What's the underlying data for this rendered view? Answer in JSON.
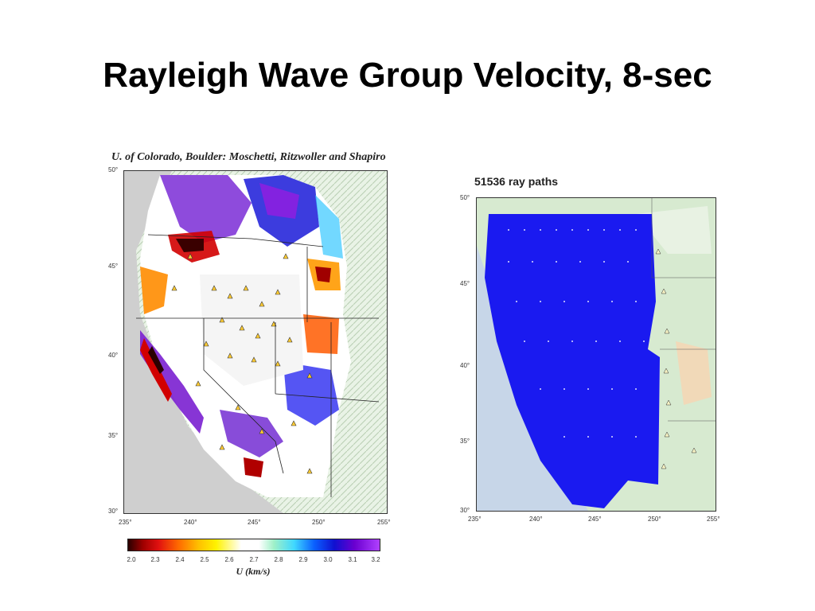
{
  "slide": {
    "title": "Rayleigh Wave Group Velocity, 8-sec"
  },
  "left_map": {
    "caption": "U. of Colorado, Boulder: Moschetti, Ritzwoller and Shapiro",
    "lat_labels": [
      "50°",
      "45°",
      "40°",
      "35°",
      "30°"
    ],
    "lon_labels": [
      "235°",
      "240°",
      "245°",
      "250°",
      "255°"
    ],
    "colorbar": {
      "ticks": [
        "2.0",
        "2.3",
        "2.4",
        "2.5",
        "2.6",
        "2.7",
        "2.8",
        "2.9",
        "3.0",
        "3.1",
        "3.2"
      ],
      "label": "U (km/s)"
    }
  },
  "right_map": {
    "caption": "51536 ray paths",
    "lat_labels": [
      "50°",
      "45°",
      "40°",
      "35°",
      "30°"
    ],
    "lon_labels": [
      "235°",
      "240°",
      "245°",
      "250°",
      "255°"
    ]
  },
  "colors": {
    "ray_path_fill": "#1a1af0",
    "land_light": "#d8ecd0",
    "ocean_left": "#cfcfcf",
    "ocean_right": "#c7d6e8"
  }
}
